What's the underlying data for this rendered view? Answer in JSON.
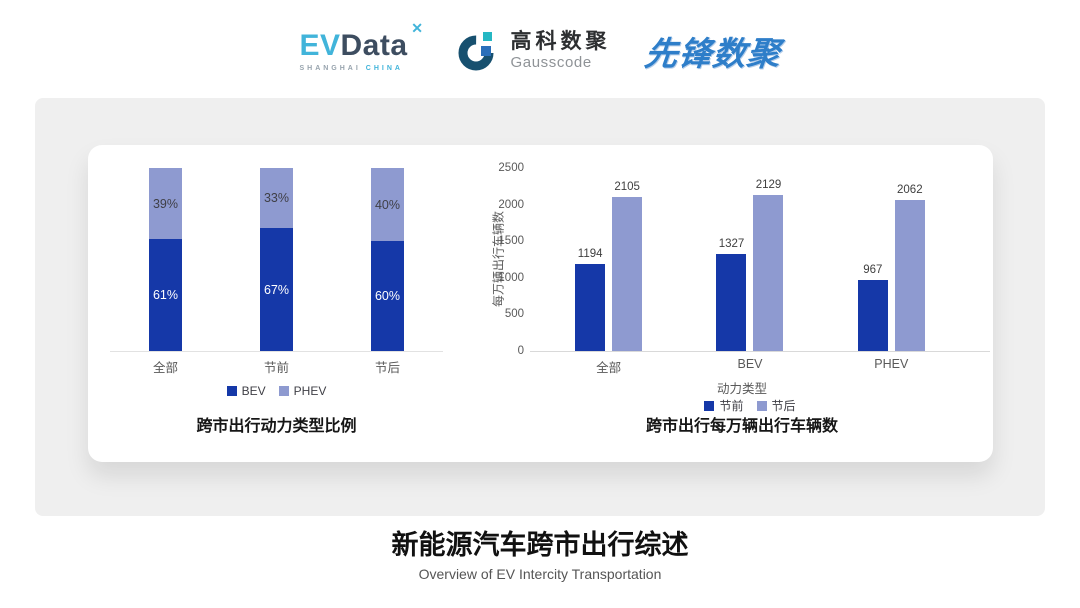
{
  "header": {
    "evdata_logo": {
      "ev": "EV",
      "data": "Data",
      "mark": "✕",
      "sub_left": "SHANGHAI",
      "sub_right": "CHINA"
    },
    "gausscode_logo": {
      "cn": "高科数聚",
      "en": "Gausscode"
    },
    "xianfeng_logo": {
      "text": "先锋数聚"
    }
  },
  "colors": {
    "series_dark": "#1538a8",
    "series_light": "#8e9ad0",
    "evdata_cyan": "#41b4da",
    "evdata_navy": "#3d4d60",
    "gauss_ring": "#17506f",
    "gauss_teal": "#25b7c3",
    "gauss_blue": "#2a6fba",
    "xianfeng_blue": "#2e7ec9",
    "card_bg": "#efefef"
  },
  "chart_data": [
    {
      "type": "bar",
      "variant": "stacked-percent",
      "title": "跨市出行动力类型比例",
      "categories": [
        "全部",
        "节前",
        "节后"
      ],
      "series": [
        {
          "name": "BEV",
          "color": "#1538a8",
          "values": [
            61,
            67,
            60
          ]
        },
        {
          "name": "PHEV",
          "color": "#8e9ad0",
          "values": [
            39,
            33,
            40
          ]
        }
      ],
      "value_suffix": "%",
      "xlabel": "",
      "ylabel": "",
      "ylim": [
        0,
        100
      ],
      "legend_position": "bottom",
      "grid": false
    },
    {
      "type": "bar",
      "variant": "grouped",
      "title": "跨市出行每万辆出行车辆数",
      "categories": [
        "全部",
        "BEV",
        "PHEV"
      ],
      "series": [
        {
          "name": "节前",
          "color": "#1538a8",
          "values": [
            1194,
            1327,
            967
          ]
        },
        {
          "name": "节后",
          "color": "#8e9ad0",
          "values": [
            2105,
            2129,
            2062
          ]
        }
      ],
      "xlabel": "动力类型",
      "ylabel": "每万辆出行车辆数",
      "ylim": [
        0,
        2500
      ],
      "yticks": [
        0,
        500,
        1000,
        1500,
        2000,
        2500
      ],
      "legend_position": "bottom",
      "grid": false
    }
  ],
  "footer": {
    "title": "新能源汽车跨市出行综述",
    "subtitle": "Overview of EV Intercity Transportation"
  }
}
